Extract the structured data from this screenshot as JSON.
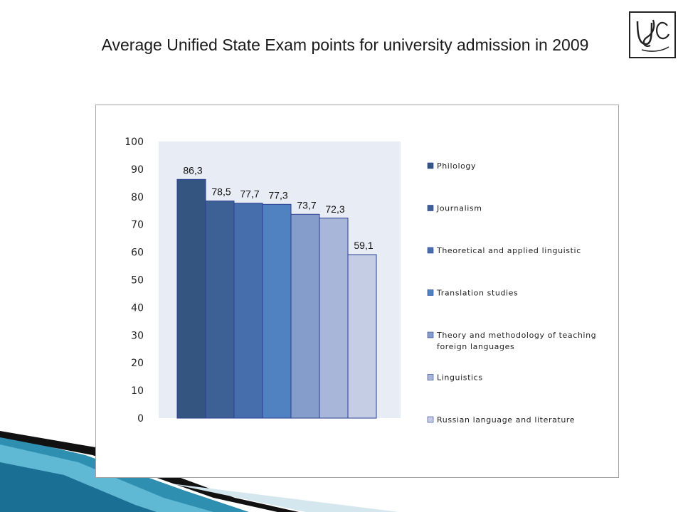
{
  "slide": {
    "title": "Average Unified State Exam points for university admission in 2009",
    "logo_label": "УдС"
  },
  "chart_data": {
    "type": "bar",
    "title": "",
    "xlabel": "",
    "ylabel": "",
    "ylim": [
      0,
      100
    ],
    "yticks": [
      0,
      10,
      20,
      30,
      40,
      50,
      60,
      70,
      80,
      90,
      100
    ],
    "legend_position": "right",
    "grid": false,
    "series": [
      {
        "name": "Philology",
        "value": 86.3,
        "label": "86,3",
        "color": "#34557f"
      },
      {
        "name": "Journalism",
        "value": 78.5,
        "label": "78,5",
        "color": "#3d6095"
      },
      {
        "name": "Theoretical and applied linguistic",
        "value": 77.7,
        "label": "77,7",
        "color": "#466eac"
      },
      {
        "name": "Translation studies",
        "value": 77.3,
        "label": "77,3",
        "color": "#5081c0"
      },
      {
        "name": "Theory and methodology of teaching foreign languages",
        "value": 73.7,
        "label": "73,7",
        "color": "#849dcb"
      },
      {
        "name": "Linguistics",
        "value": 72.3,
        "label": "72,3",
        "color": "#a8b6d9"
      },
      {
        "name": "Russian language and literature",
        "value": 59.1,
        "label": "59,1",
        "color": "#c4cde3"
      }
    ]
  }
}
